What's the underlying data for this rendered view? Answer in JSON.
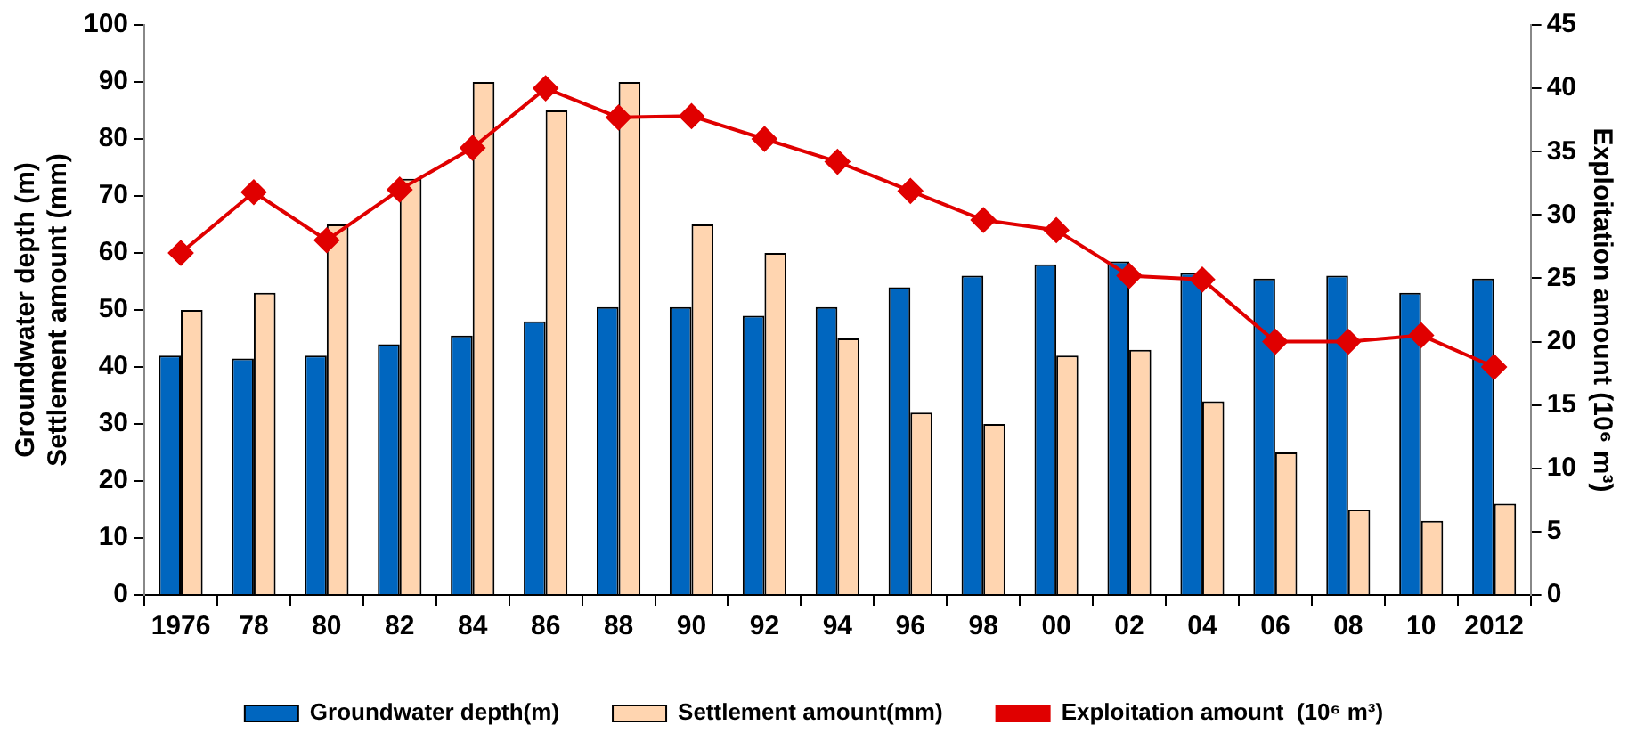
{
  "chart_data": {
    "type": "bar",
    "categories": [
      "1976",
      "78",
      "80",
      "82",
      "84",
      "86",
      "88",
      "90",
      "92",
      "94",
      "96",
      "98",
      "00",
      "02",
      "04",
      "06",
      "08",
      "10",
      "2012"
    ],
    "ylabel": "Groundwater depth (m)\nSettlement amount (mm)",
    "y2label": "Exploitation amount (10⁶ m³)",
    "ylim": [
      0,
      100
    ],
    "yticks": [
      0,
      10,
      20,
      30,
      40,
      50,
      60,
      70,
      80,
      90,
      100
    ],
    "y2lim": [
      0,
      45
    ],
    "y2ticks": [
      0,
      5,
      10,
      15,
      20,
      25,
      30,
      35,
      40,
      45
    ],
    "grid": false,
    "legend": "bottom",
    "marker": "diamond",
    "series": [
      {
        "name": "Groundwater depth(m)",
        "color": "#0066bf",
        "values": [
          42,
          41.5,
          42,
          44,
          45.5,
          48,
          50.5,
          50.5,
          49,
          50.5,
          54,
          56,
          58,
          58.5,
          56.5,
          55.5,
          56,
          53,
          55.5
        ]
      },
      {
        "name": "Settlement amount(mm)",
        "color": "#ffd5b0",
        "values": [
          50,
          53,
          65,
          73,
          90,
          85,
          90,
          65,
          60,
          45,
          32,
          30,
          42,
          43,
          34,
          25,
          15,
          13,
          16
        ]
      },
      {
        "name": "Exploitation amount  (10⁶ m³)",
        "type": "line",
        "axis": "y2",
        "color": "#e00000",
        "values": [
          27,
          31.8,
          28,
          32,
          35.3,
          40,
          37.7,
          37.8,
          36,
          34.2,
          31.9,
          29.6,
          28.8,
          25.2,
          24.9,
          20,
          20,
          20.5,
          18
        ]
      }
    ]
  }
}
